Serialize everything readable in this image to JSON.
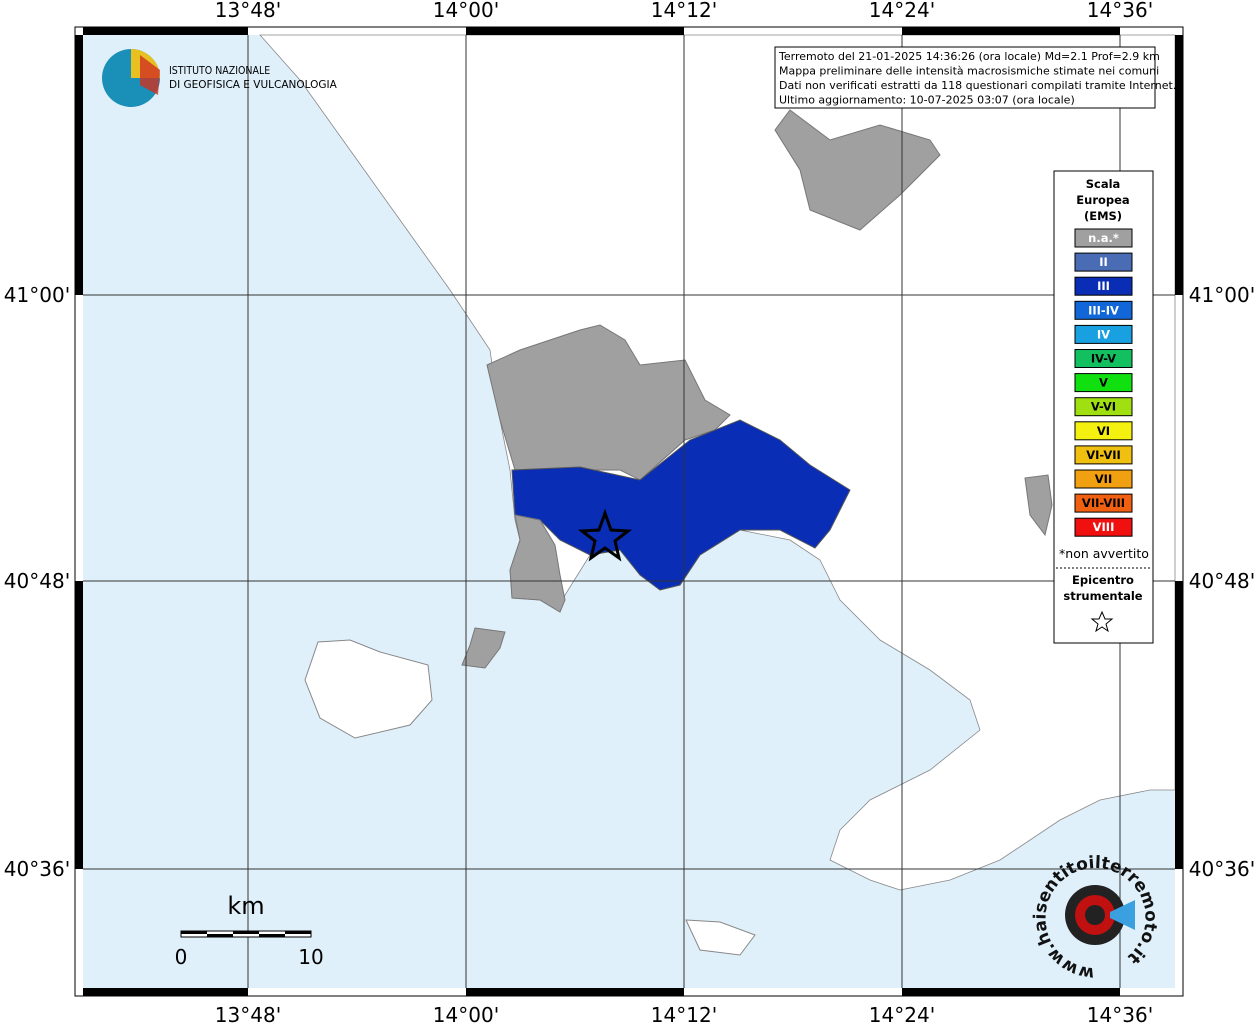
{
  "header": {
    "logo": [
      "ISTITUTO NAZIONALE",
      "DI GEOFISICA E VULCANOLOGIA"
    ]
  },
  "info": [
    "Terremoto del 21-01-2025 14:36:26 (ora locale) Md=2.1 Prof=2.9 km",
    "Mappa preliminare delle intensità macrosismiche stimate nei comuni",
    "Dati non verificati estratti da 118 questionari compilati tramite Internet.",
    "Ultimo aggiornamento: 10-07-2025 03:07 (ora locale)"
  ],
  "axes": {
    "top": [
      "13°48'",
      "14°00'",
      "14°12'",
      "14°24'",
      "14°36'"
    ],
    "bottom": [
      "13°48'",
      "14°00'",
      "14°12'",
      "14°24'",
      "14°36'"
    ],
    "left": [
      "41°00'",
      "40°48'",
      "40°36'"
    ],
    "right": [
      "41°00'",
      "40°48'",
      "40°36'"
    ]
  },
  "legend": {
    "title": [
      "Scala",
      "Europea",
      "(EMS)"
    ],
    "items": [
      {
        "label": "n.a.*",
        "color": "#a0a0a0",
        "text_color": "#ffffff"
      },
      {
        "label": "II",
        "color": "#4a6cb5",
        "text_color": "#ffffff"
      },
      {
        "label": "III",
        "color": "#0a2db5",
        "text_color": "#ffffff"
      },
      {
        "label": "III-IV",
        "color": "#1166d8",
        "text_color": "#ffffff"
      },
      {
        "label": "IV",
        "color": "#19a0e0",
        "text_color": "#ffffff"
      },
      {
        "label": "IV-V",
        "color": "#12c060",
        "text_color": "#000000"
      },
      {
        "label": "V",
        "color": "#10e010",
        "text_color": "#000000"
      },
      {
        "label": "V-VI",
        "color": "#a0e010",
        "text_color": "#000000"
      },
      {
        "label": "VI",
        "color": "#f4f010",
        "text_color": "#000000"
      },
      {
        "label": "VI-VII",
        "color": "#f0c010",
        "text_color": "#000000"
      },
      {
        "label": "VII",
        "color": "#f0a010",
        "text_color": "#000000"
      },
      {
        "label": "VII-VIII",
        "color": "#f06010",
        "text_color": "#000000"
      },
      {
        "label": "VIII",
        "color": "#f01010",
        "text_color": "#ffffff"
      }
    ],
    "note": "*non avvertito",
    "epicenter": [
      "Epicentro",
      "strumentale"
    ]
  },
  "scale_bar": {
    "unit": "km",
    "start": "0",
    "end": "10"
  },
  "watermark": "www.haisentitoilterremoto.it"
}
